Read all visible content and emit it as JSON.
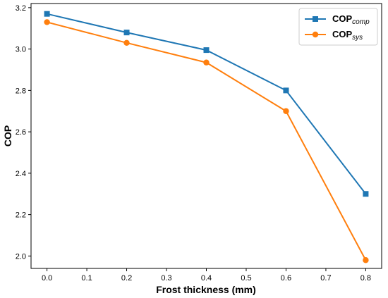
{
  "chart_data": {
    "type": "line",
    "xlabel": "Frost thickness (mm)",
    "ylabel": "COP",
    "xlim": [
      -0.04,
      0.84
    ],
    "ylim": [
      1.94,
      3.22
    ],
    "x_ticks": [
      "0.0",
      "0.1",
      "0.2",
      "0.3",
      "0.4",
      "0.5",
      "0.6",
      "0.7",
      "0.8"
    ],
    "y_ticks": [
      "2.0",
      "2.2",
      "2.4",
      "2.6",
      "2.8",
      "3.0",
      "3.2"
    ],
    "grid": false,
    "legend_position": "top-right",
    "series": [
      {
        "name": "COPcomp",
        "legend_main": "COP",
        "legend_sub": "comp",
        "color": "#1f77b4",
        "marker": "square",
        "x": [
          0.0,
          0.2,
          0.4,
          0.6,
          0.8
        ],
        "y": [
          3.17,
          3.08,
          2.995,
          2.8,
          2.3
        ]
      },
      {
        "name": "COPsys",
        "legend_main": "COP",
        "legend_sub": "sys",
        "color": "#ff7f0e",
        "marker": "circle",
        "x": [
          0.0,
          0.2,
          0.4,
          0.6,
          0.8
        ],
        "y": [
          3.13,
          3.03,
          2.935,
          2.7,
          1.98
        ]
      }
    ]
  }
}
